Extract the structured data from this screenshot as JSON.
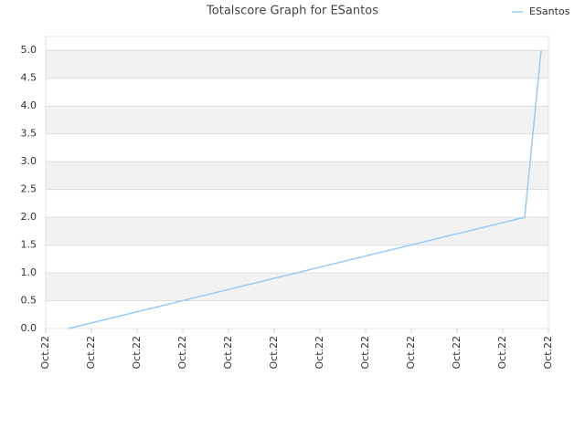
{
  "chart_data": {
    "type": "line",
    "title": "Totalscore Graph for ESantos",
    "x": [
      0.5,
      10.48,
      10.84
    ],
    "series": [
      {
        "name": "ESantos",
        "color": "#9ccaf0",
        "values": [
          0,
          2,
          5
        ]
      }
    ],
    "xlim": [
      0,
      11
    ],
    "xticks": [
      {
        "value": 0,
        "label": "Oct.22"
      },
      {
        "value": 1,
        "label": "Oct.22"
      },
      {
        "value": 2,
        "label": "Oct.22"
      },
      {
        "value": 3,
        "label": "Oct.22"
      },
      {
        "value": 4,
        "label": "Oct.22"
      },
      {
        "value": 5,
        "label": "Oct.22"
      },
      {
        "value": 6,
        "label": "Oct.22"
      },
      {
        "value": 7,
        "label": "Oct.22"
      },
      {
        "value": 8,
        "label": "Oct.22"
      },
      {
        "value": 9,
        "label": "Oct.22"
      },
      {
        "value": 10,
        "label": "Oct.22"
      },
      {
        "value": 11,
        "label": "Oct.22"
      }
    ],
    "ylim": [
      0,
      5.25
    ],
    "yticks": [
      {
        "value": 0,
        "label": "0.0"
      },
      0.5,
      {
        "value": 1,
        "label": "1.0"
      },
      1.5,
      {
        "value": 2,
        "label": "2.0"
      },
      2.5,
      {
        "value": 3,
        "label": "3.0"
      },
      3.5,
      {
        "value": 4,
        "label": "4.0"
      },
      4.5,
      {
        "value": 5,
        "label": "5.0"
      }
    ],
    "grid": true,
    "legend": "top-right"
  }
}
